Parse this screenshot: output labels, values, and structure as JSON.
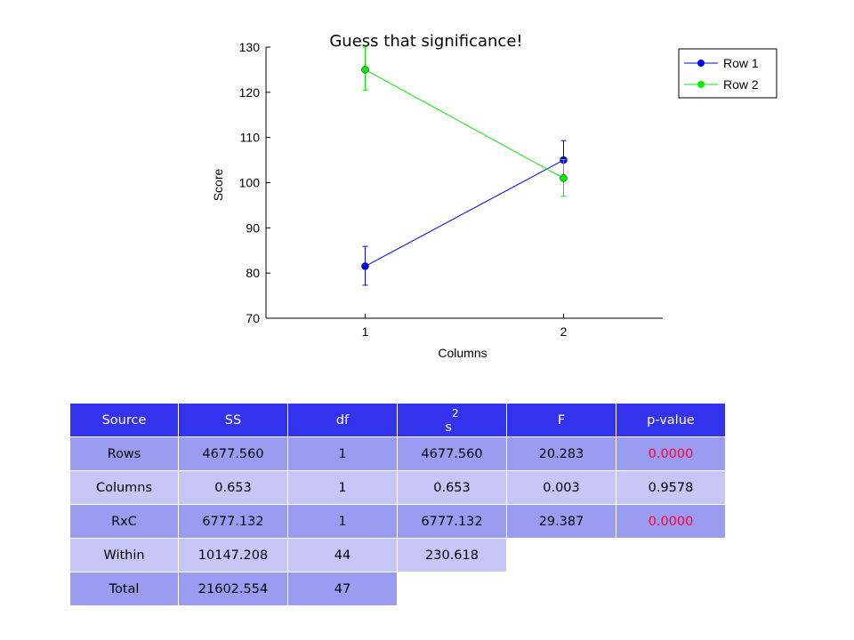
{
  "chart_data": {
    "type": "line",
    "title": "Guess that significance!",
    "xlabel": "Columns",
    "ylabel": "Score",
    "categories": [
      "1",
      "2"
    ],
    "xlim": [
      0.5,
      2.5
    ],
    "ylim": [
      70,
      130
    ],
    "yticks": [
      70,
      80,
      90,
      100,
      110,
      120,
      130
    ],
    "grid": false,
    "legend_position": "top-right",
    "series": [
      {
        "name": "Row 1",
        "color": "#0000ee",
        "values": [
          81.5,
          105
        ],
        "error_low": [
          77.3,
          100.8
        ],
        "error_high": [
          85.9,
          109.3
        ]
      },
      {
        "name": "Row 2",
        "color": "#00ee00",
        "values": [
          125,
          101
        ],
        "error_low": [
          120.5,
          97
        ],
        "error_high": [
          130,
          105.1
        ]
      }
    ]
  },
  "table": {
    "headers": {
      "source": "Source",
      "ss": "SS",
      "df": "df",
      "s2_base": "s",
      "s2_exp": "2",
      "f": "F",
      "p": "p-value"
    },
    "rows": [
      {
        "source": "Rows",
        "ss": "4677.560",
        "df": "1",
        "s2": "4677.560",
        "f": "20.283",
        "p": "0.0000"
      },
      {
        "source": "Columns",
        "ss": "0.653",
        "df": "1",
        "s2": "0.653",
        "f": "0.003",
        "p": "0.9578"
      },
      {
        "source": "RxC",
        "ss": "6777.132",
        "df": "1",
        "s2": "6777.132",
        "f": "29.387",
        "p": "0.0000"
      },
      {
        "source": "Within",
        "ss": "10147.208",
        "df": "44",
        "s2": "230.618"
      },
      {
        "source": "Total",
        "ss": "21602.554",
        "df": "47"
      }
    ]
  }
}
